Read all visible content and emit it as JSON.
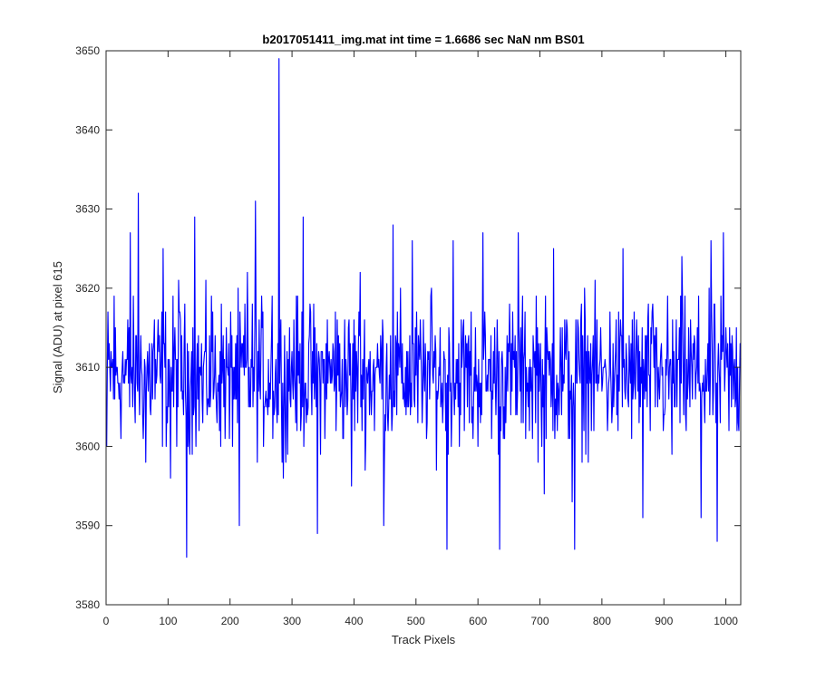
{
  "chart_data": {
    "type": "line",
    "title": "b2017051411_img.mat int time = 1.6686 sec  NaN nm BS01",
    "xlabel": "Track Pixels",
    "ylabel": "Signal (ADU) at pixel 615",
    "xlim": [
      0,
      1024
    ],
    "ylim": [
      3580,
      3650
    ],
    "xticks": [
      0,
      100,
      200,
      300,
      400,
      500,
      600,
      700,
      800,
      900,
      1000
    ],
    "yticks": [
      3580,
      3590,
      3600,
      3610,
      3620,
      3630,
      3640,
      3650
    ],
    "grid": false,
    "legend": "none",
    "series": [
      {
        "color": "#0000ff",
        "x": [
          1,
          13,
          26,
          39,
          46,
          52,
          64,
          78,
          92,
          104,
          117,
          130,
          143,
          156,
          170,
          184,
          199,
          215,
          228,
          241,
          255,
          268,
          276,
          279,
          290,
          303,
          318,
          326,
          341,
          355,
          370,
          384,
          396,
          410,
          427,
          443,
          448,
          463,
          478,
          494,
          510,
          524,
          540,
          550,
          560,
          575,
          592,
          608,
          623,
          635,
          650,
          665,
          680,
          694,
          707,
          722,
          738,
          752,
          756,
          772,
          788,
          803,
          818,
          834,
          850,
          866,
          881,
          898,
          913,
          929,
          944,
          960,
          976,
          986,
          996,
          1009,
          1024
        ],
        "values": [
          3600,
          3619,
          3610,
          3627,
          3606,
          3632,
          3598,
          3616,
          3625,
          3596,
          3621,
          3586,
          3629,
          3603,
          3619,
          3612,
          3601,
          3590,
          3622,
          3631,
          3605,
          3619,
          3603,
          3649,
          3598,
          3616,
          3629,
          3605,
          3589,
          3613,
          3617,
          3610,
          3595,
          3622,
          3607,
          3614,
          3590,
          3628,
          3613,
          3626,
          3603,
          3619,
          3605,
          3587,
          3626,
          3612,
          3601,
          3627,
          3607,
          3587,
          3612,
          3627,
          3608,
          3619,
          3594,
          3625,
          3609,
          3593,
          3587,
          3620,
          3612,
          3610,
          3613,
          3625,
          3606,
          3591,
          3617,
          3610,
          3599,
          3624,
          3612,
          3591,
          3626,
          3588,
          3627,
          3605,
          3611
        ]
      }
    ]
  }
}
